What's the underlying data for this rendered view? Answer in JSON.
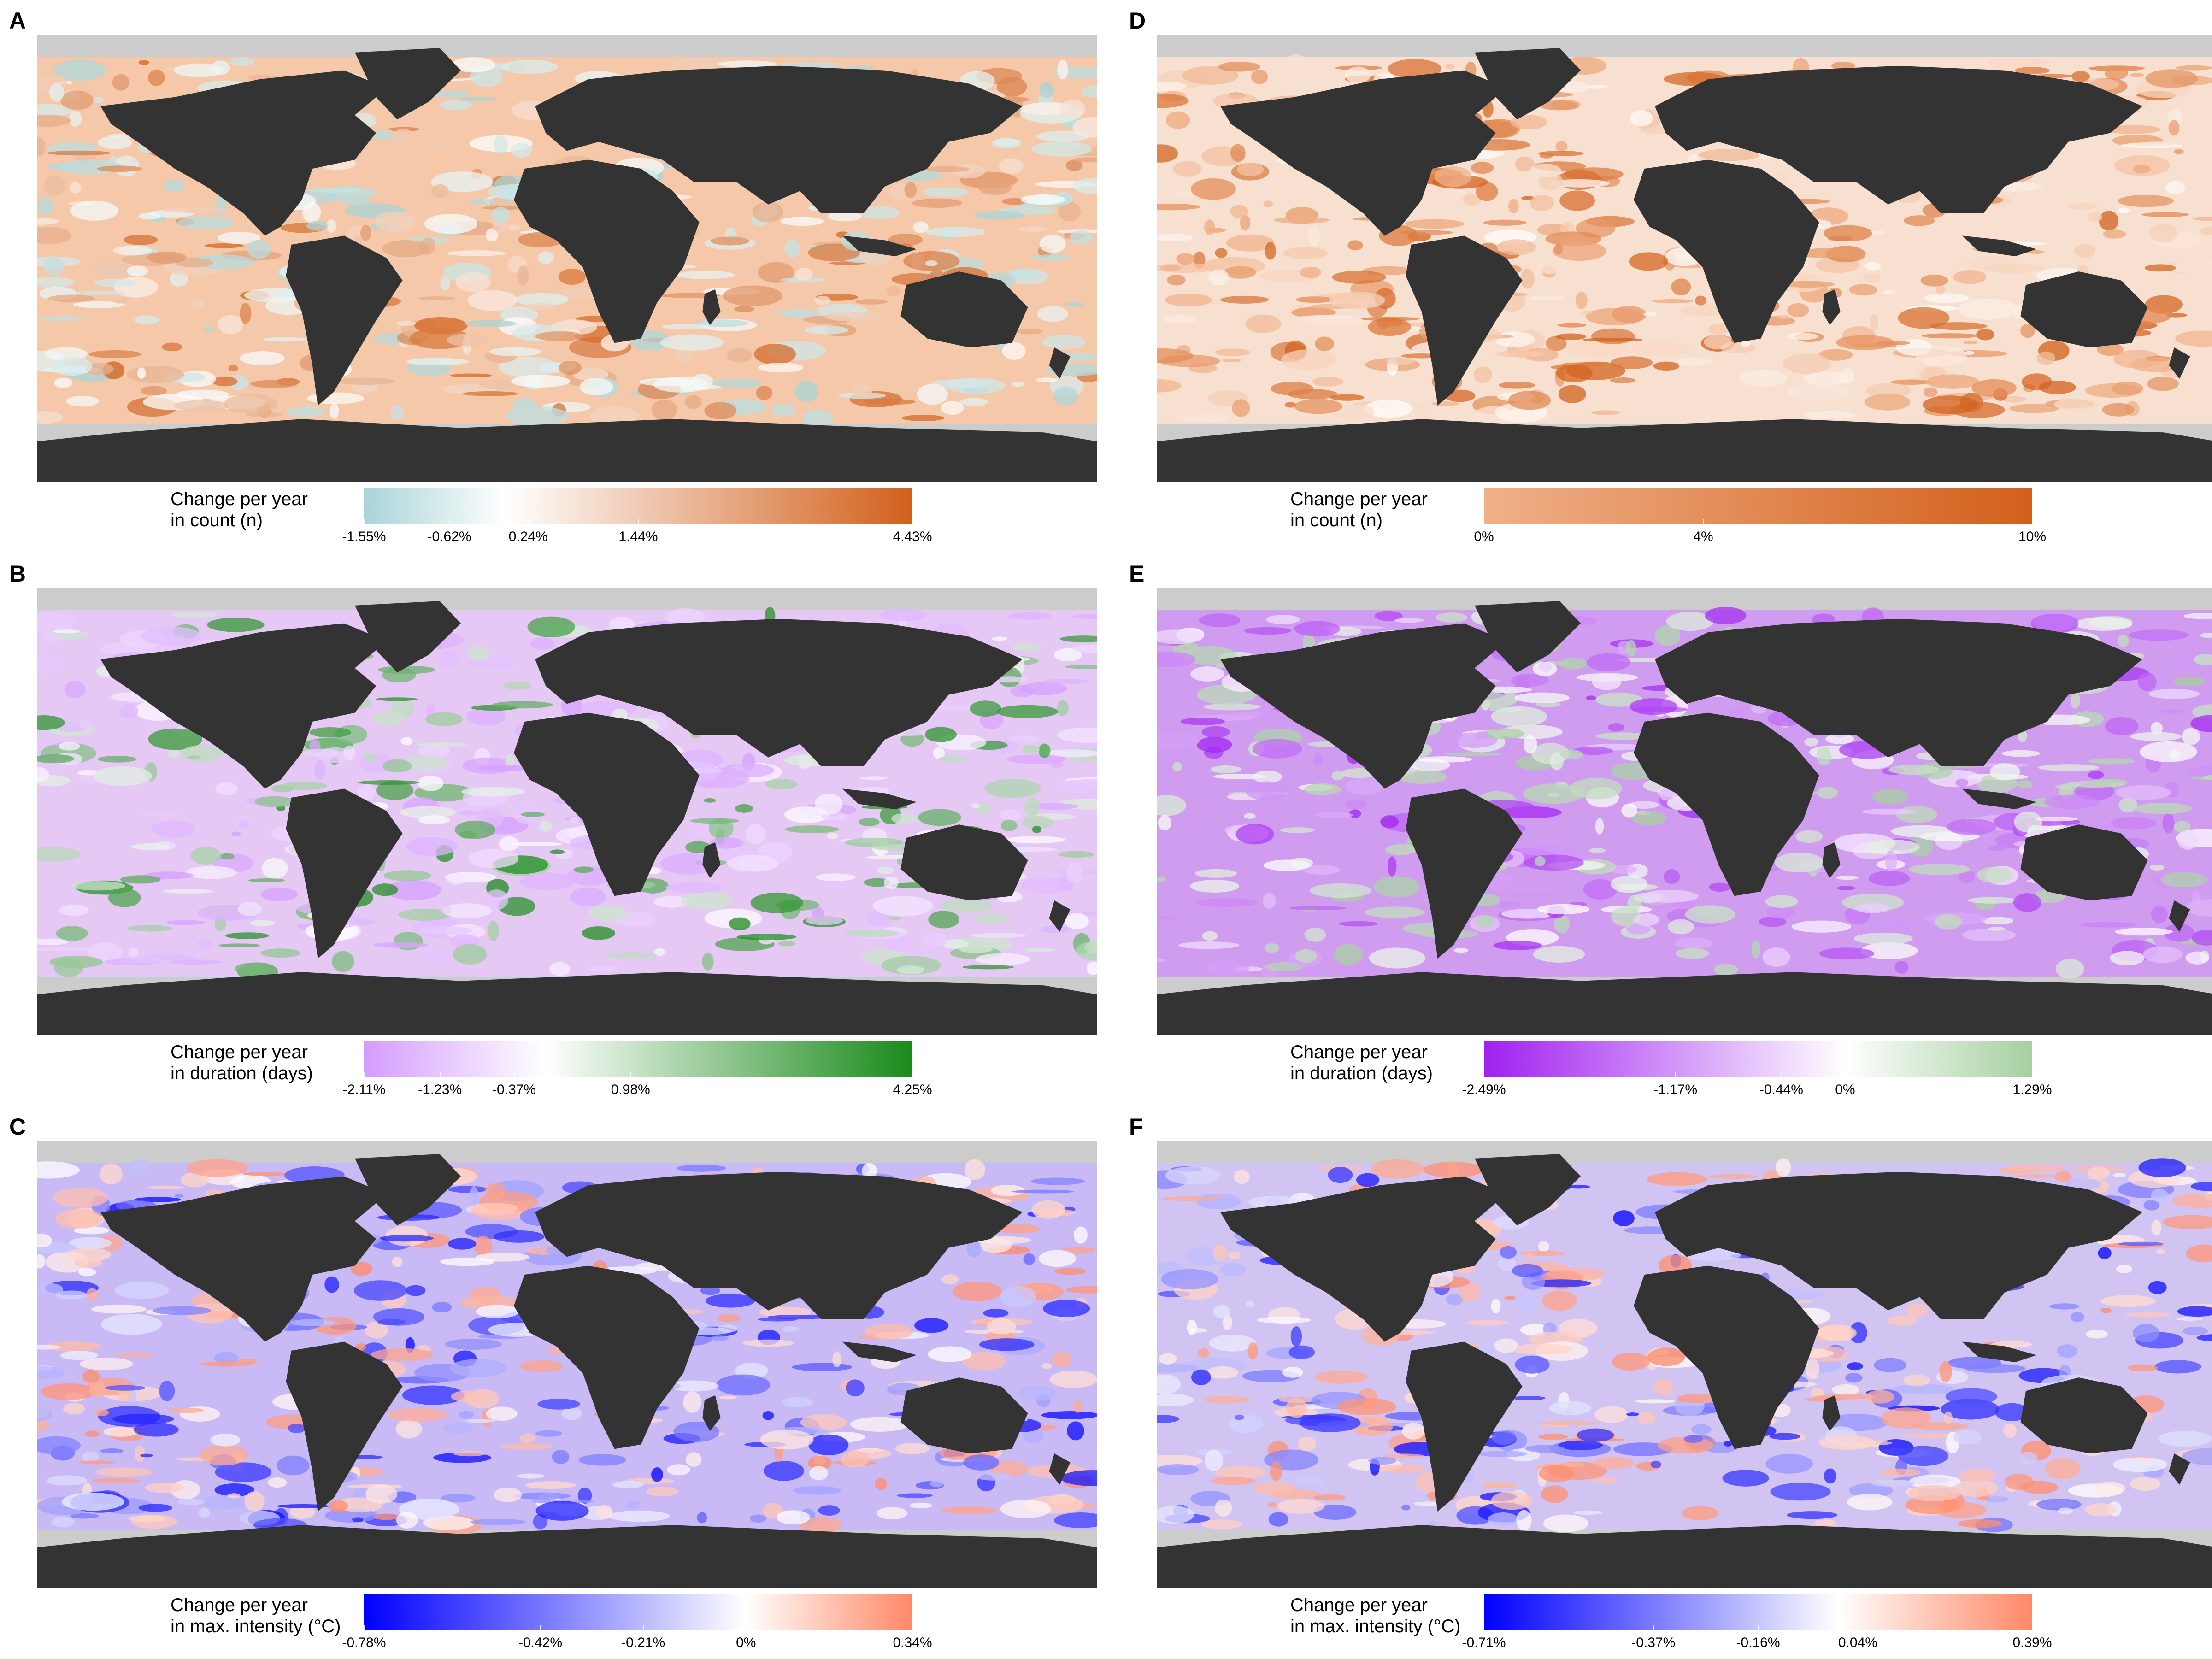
{
  "panels": [
    {
      "letter": "A",
      "legend_line1": "Change per year",
      "legend_line2": "in count (n)",
      "scale": {
        "min": -1.55,
        "max": 4.43,
        "unit": "%"
      },
      "ticks": [
        {
          "value": -1.55,
          "label": "-1.55%"
        },
        {
          "value": -0.62,
          "label": "-0.62%"
        },
        {
          "value": 0.24,
          "label": "0.24%"
        },
        {
          "value": 1.44,
          "label": "1.44%"
        },
        {
          "value": 4.43,
          "label": "4.43%"
        }
      ],
      "colormap": {
        "low": "#a9d4d7",
        "mid": "#ffffff",
        "high": "#d2601b"
      },
      "ocean_base": "#f4c8a8"
    },
    {
      "letter": "B",
      "legend_line1": "Change per year",
      "legend_line2": "in duration (days)",
      "scale": {
        "min": -2.11,
        "max": 4.25,
        "unit": "%"
      },
      "ticks": [
        {
          "value": -2.11,
          "label": "-2.11%"
        },
        {
          "value": -1.23,
          "label": "-1.23%"
        },
        {
          "value": -0.37,
          "label": "-0.37%"
        },
        {
          "value": 0.98,
          "label": "0.98%"
        },
        {
          "value": 4.25,
          "label": "4.25%"
        }
      ],
      "colormap": {
        "low": "#d49cff",
        "mid": "#ffffff",
        "high": "#1a8a1a"
      },
      "ocean_base": "#e6c8f5"
    },
    {
      "letter": "C",
      "legend_line1": "Change per year",
      "legend_line2": "in max. intensity (°C)",
      "scale": {
        "min": -0.78,
        "max": 0.34,
        "unit": "%"
      },
      "ticks": [
        {
          "value": -0.78,
          "label": "-0.78%"
        },
        {
          "value": -0.42,
          "label": "-0.42%"
        },
        {
          "value": -0.21,
          "label": "-0.21%"
        },
        {
          "value": 0,
          "label": "0%"
        },
        {
          "value": 0.34,
          "label": "0.34%"
        }
      ],
      "colormap": {
        "low": "#0000ff",
        "mid": "#ffffff",
        "high": "#ff8866"
      },
      "ocean_base": "#c9baf5"
    },
    {
      "letter": "D",
      "legend_line1": "Change per year",
      "legend_line2": "in count (n)",
      "scale": {
        "min": 0,
        "max": 10,
        "unit": "%"
      },
      "ticks": [
        {
          "value": 0,
          "label": "0%"
        },
        {
          "value": 4,
          "label": "4%"
        },
        {
          "value": 10,
          "label": "10%"
        }
      ],
      "colormap": {
        "low": "#ffffff",
        "mid": "#f0b088",
        "high": "#d2601b"
      },
      "ocean_base": "#f7e0cf"
    },
    {
      "letter": "E",
      "legend_line1": "Change per year",
      "legend_line2": "in duration (days)",
      "scale": {
        "min": -2.49,
        "max": 1.29,
        "unit": "%"
      },
      "ticks": [
        {
          "value": -2.49,
          "label": "-2.49%"
        },
        {
          "value": -1.17,
          "label": "-1.17%"
        },
        {
          "value": -0.44,
          "label": "-0.44%"
        },
        {
          "value": 0,
          "label": "0%"
        },
        {
          "value": 1.29,
          "label": "1.29%"
        }
      ],
      "colormap": {
        "low": "#a020f0",
        "mid": "#ffffff",
        "high": "#a6cfa0"
      },
      "ocean_base": "#cf9cf0"
    },
    {
      "letter": "F",
      "legend_line1": "Change per year",
      "legend_line2": "in max. intensity (°C)",
      "scale": {
        "min": -0.71,
        "max": 0.39,
        "unit": "%"
      },
      "ticks": [
        {
          "value": -0.71,
          "label": "-0.71%"
        },
        {
          "value": -0.37,
          "label": "-0.37%"
        },
        {
          "value": -0.16,
          "label": "-0.16%"
        },
        {
          "value": 0.04,
          "label": "0.04%"
        },
        {
          "value": 0.39,
          "label": "0.39%"
        }
      ],
      "colormap": {
        "low": "#0000ff",
        "mid": "#ffffff",
        "high": "#ff8866"
      },
      "ocean_base": "#d2c4f2"
    }
  ],
  "colors": {
    "land": "#333333",
    "ice": "#cccccc"
  }
}
